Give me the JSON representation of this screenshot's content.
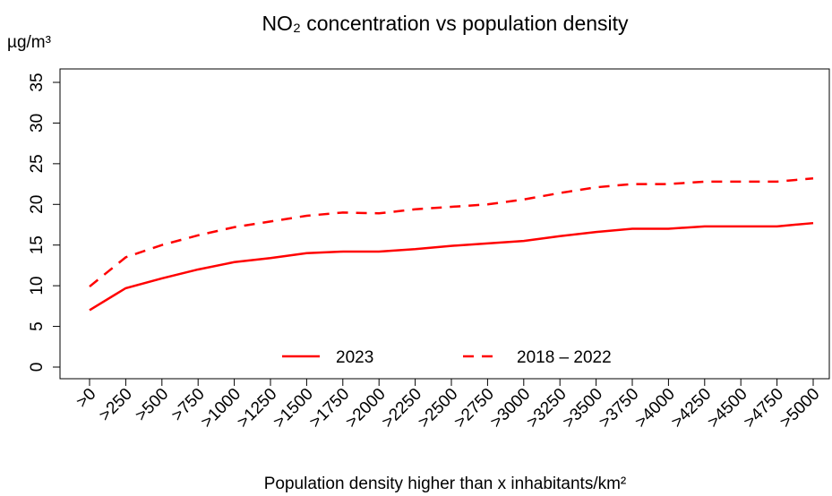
{
  "chart_data": {
    "type": "line",
    "title": "NO₂ concentration vs population density",
    "y_unit": "µg/m³",
    "x_label": "Population density higher than x inhabitants/km²",
    "categories": [
      ">0",
      ">250",
      ">500",
      ">750",
      ">1000",
      ">1250",
      ">1500",
      ">1750",
      ">2000",
      ">2250",
      ">2500",
      ">2750",
      ">3000",
      ">3250",
      ">3500",
      ">3750",
      ">4000",
      ">4250",
      ">4500",
      ">4750",
      ">5000"
    ],
    "series": [
      {
        "name": "2023",
        "color": "#ff0000",
        "linestyle": "solid",
        "values": [
          7.0,
          9.7,
          10.9,
          12.0,
          12.9,
          13.4,
          14.0,
          14.2,
          14.2,
          14.5,
          14.9,
          15.2,
          15.5,
          16.1,
          16.6,
          17.0,
          17.0,
          17.3,
          17.3,
          17.3,
          17.7
        ]
      },
      {
        "name": "2018 – 2022",
        "color": "#ff0000",
        "linestyle": "dashed",
        "values": [
          9.9,
          13.5,
          15.0,
          16.2,
          17.2,
          17.9,
          18.6,
          19.0,
          18.9,
          19.4,
          19.7,
          20.0,
          20.6,
          21.4,
          22.1,
          22.5,
          22.5,
          22.8,
          22.8,
          22.8,
          23.2
        ]
      }
    ],
    "ylim": [
      0,
      35
    ],
    "yticks": [
      0,
      5,
      10,
      15,
      20,
      25,
      30,
      35
    ],
    "grid": false,
    "legend": "bottom"
  }
}
